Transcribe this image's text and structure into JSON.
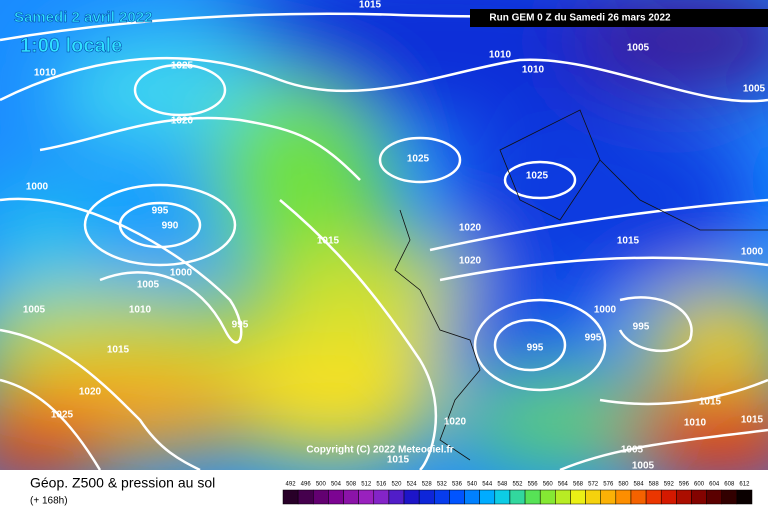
{
  "header": {
    "date": "Samedi 2 avril 2022",
    "time": "1:00 locale",
    "run": "Run GEM 0 Z du Samedi 26 mars 2022"
  },
  "copyright": "Copyright (C) 2022 Meteociel.fr",
  "footer": {
    "title": "Géop. Z500 & pression au sol",
    "lead": "(+ 168h)"
  },
  "legend": {
    "values": [
      492,
      496,
      500,
      504,
      508,
      512,
      516,
      520,
      524,
      528,
      532,
      536,
      540,
      544,
      548,
      552,
      556,
      560,
      564,
      568,
      572,
      576,
      580,
      584,
      588,
      592,
      596,
      600,
      604,
      608,
      612
    ]
  },
  "isobars": [
    1015,
    1010,
    1025,
    1020,
    1000,
    995,
    990,
    1010,
    1010,
    1005,
    1005,
    1025,
    1025,
    1015,
    1020,
    1020,
    1015,
    1000,
    1000,
    1005,
    1010,
    1005,
    995,
    1000,
    995,
    995,
    995,
    1015,
    1020,
    1025,
    1015,
    1010,
    1015,
    1020,
    1015,
    1005,
    1005
  ]
}
